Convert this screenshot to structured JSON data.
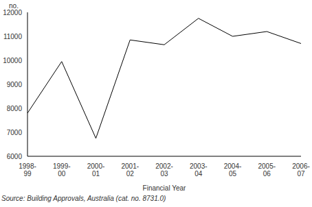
{
  "chart_data": {
    "type": "line",
    "categories": [
      "1998-99",
      "1999-00",
      "2000-01",
      "2001-02",
      "2002-03",
      "2003-04",
      "2004-05",
      "2005-06",
      "2006-07"
    ],
    "values": [
      7800,
      9950,
      6750,
      10850,
      10650,
      11750,
      11000,
      11200,
      10700
    ],
    "color": "#000000",
    "ylabel": "no.",
    "xlabel": "Financial Year",
    "ylim": [
      6000,
      12000
    ],
    "yticks": [
      6000,
      7000,
      8000,
      9000,
      10000,
      11000,
      12000
    ],
    "grid": false,
    "annotations": [
      "Source: Building Approvals, Australia (cat. no. 8731.0)"
    ]
  }
}
